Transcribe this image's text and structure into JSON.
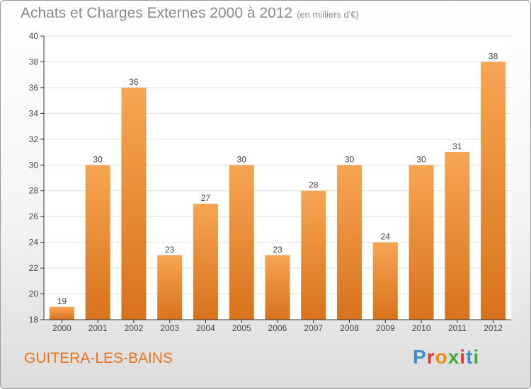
{
  "header": {
    "title": "Achats et Charges Externes 2000 à 2012",
    "subtitle": "(en milliers d'€)"
  },
  "footer": {
    "place": "GUITERA-LES-BAINS",
    "logo_letters": [
      "P",
      "r",
      "o",
      "x",
      "i",
      "t",
      "i"
    ],
    "logo_colors": [
      "#3b8ed0",
      "#e23b2e",
      "#f08a1c",
      "#46a83c",
      "#e23b2e",
      "#3b8ed0",
      "#46a83c"
    ]
  },
  "chart_data": {
    "type": "bar",
    "title": "Achats et Charges Externes 2000 à 2012",
    "subtitle": "(en milliers d'€)",
    "categories": [
      "2000",
      "2001",
      "2002",
      "2003",
      "2004",
      "2005",
      "2006",
      "2007",
      "2008",
      "2009",
      "2010",
      "2011",
      "2012"
    ],
    "values": [
      19,
      30,
      36,
      23,
      27,
      30,
      23,
      28,
      30,
      24,
      30,
      31,
      38
    ],
    "data_labels": [
      "19",
      "30",
      "36",
      "23",
      "27",
      "30",
      "23",
      "28",
      "30",
      "24",
      "30",
      "31",
      "38"
    ],
    "ylim": [
      18,
      40
    ],
    "yticks": [
      18,
      20,
      22,
      24,
      26,
      28,
      30,
      32,
      34,
      36,
      38,
      40
    ],
    "ytick_labels": [
      "18",
      "20",
      "22",
      "24",
      "26",
      "28",
      "30",
      "32",
      "34",
      "36",
      "38",
      "40"
    ],
    "grid": true,
    "colors": {
      "bar_light": "#f7a552",
      "bar_dark": "#d9721c",
      "grid": "#e2e2e2",
      "axis": "#333333",
      "text": "#444444"
    }
  }
}
